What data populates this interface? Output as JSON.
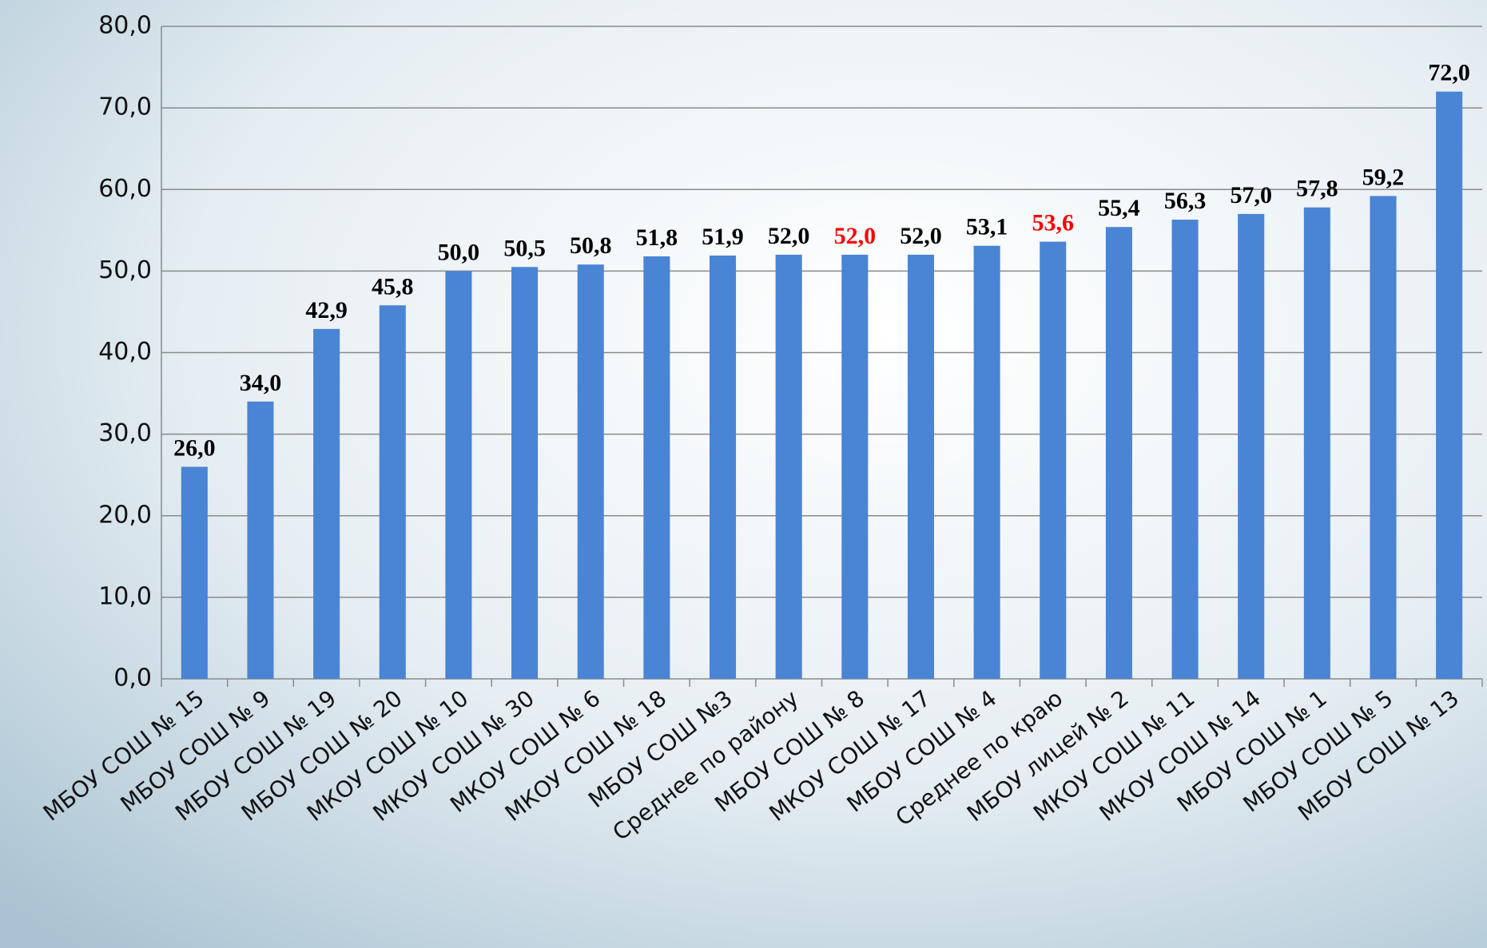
{
  "chart_data": {
    "type": "bar",
    "categories": [
      "МБОУ СОШ № 15",
      "МБОУ СОШ № 9",
      "МБОУ СОШ № 19",
      "МБОУ СОШ № 20",
      "МКОУ СОШ № 10",
      "МКОУ СОШ № 30",
      "МКОУ СОШ № 6",
      "МКОУ СОШ № 18",
      "МБОУ СОШ №3",
      "Среднее по району",
      "МБОУ СОШ № 8",
      "МКОУ СОШ № 17",
      "МБОУ СОШ № 4",
      "Среднее по краю",
      "МБОУ лицей № 2",
      "МКОУ СОШ № 11",
      "МКОУ СОШ № 14",
      "МБОУ СОШ № 1",
      "МБОУ СОШ № 5",
      "МБОУ СОШ № 13"
    ],
    "values": [
      26.0,
      34.0,
      42.9,
      45.8,
      50.0,
      50.5,
      50.8,
      51.8,
      51.9,
      52.0,
      52.0,
      52.0,
      53.1,
      53.6,
      55.4,
      56.3,
      57.0,
      57.8,
      59.2,
      72.0
    ],
    "value_labels": [
      "26,0",
      "34,0",
      "42,9",
      "45,8",
      "50,0",
      "50,5",
      "50,8",
      "51,8",
      "51,9",
      "52,0",
      "52,0",
      "52,0",
      "53,1",
      "53,6",
      "55,4",
      "56,3",
      "57,0",
      "57,8",
      "59,2",
      "72,0"
    ],
    "value_label_colors": [
      "#000000",
      "#000000",
      "#000000",
      "#000000",
      "#000000",
      "#000000",
      "#000000",
      "#000000",
      "#000000",
      "#000000",
      "#ff0000",
      "#000000",
      "#000000",
      "#ff0000",
      "#000000",
      "#000000",
      "#000000",
      "#000000",
      "#000000",
      "#000000"
    ],
    "color": "#4a84d4",
    "ylim": [
      0,
      80
    ],
    "yticks": [
      {
        "value": 0,
        "label": "0,0"
      },
      {
        "value": 10,
        "label": "10,0"
      },
      {
        "value": 20,
        "label": "20,0"
      },
      {
        "value": 30,
        "label": "30,0"
      },
      {
        "value": 40,
        "label": "40,0"
      },
      {
        "value": 50,
        "label": "50,0"
      },
      {
        "value": 60,
        "label": "60,0"
      },
      {
        "value": 70,
        "label": "70,0"
      },
      {
        "value": 80,
        "label": "80,0"
      }
    ],
    "grid": true
  }
}
